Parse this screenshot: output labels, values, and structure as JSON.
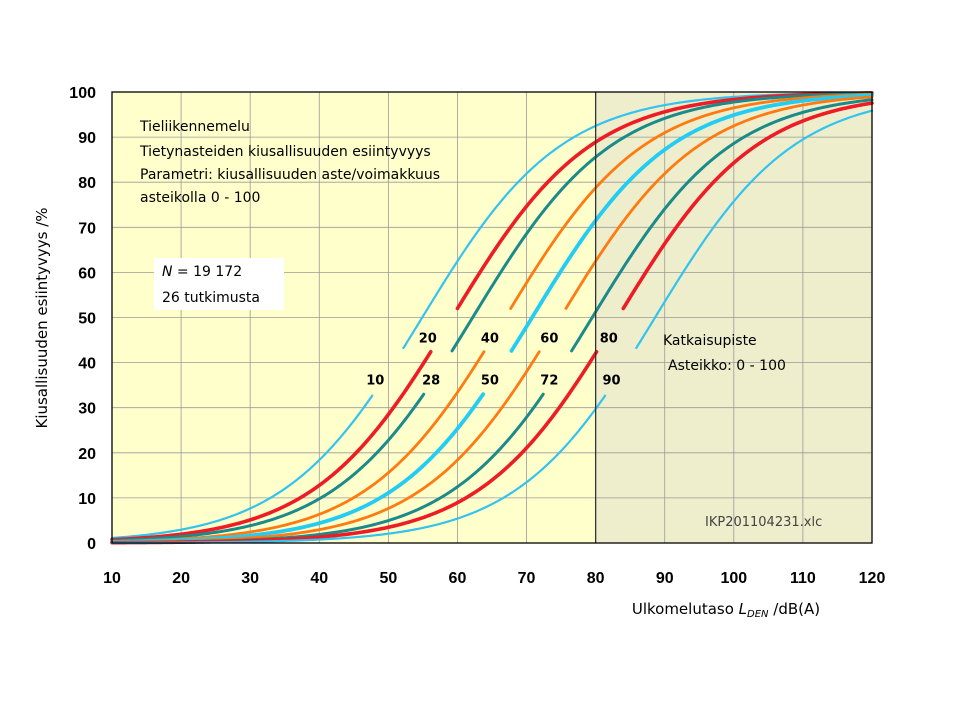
{
  "chart_data": {
    "type": "line",
    "ylabel": "Kiusallisuuden esiintyvyys /%",
    "xlabel_prefix": "Ulkomelutaso ",
    "xlabel_var": "L",
    "xlabel_sub": "DEN",
    "xlabel_suffix": " /dB(A)",
    "xlim": [
      10,
      120
    ],
    "ylim": [
      0,
      100
    ],
    "x_ticks": [
      10,
      20,
      30,
      40,
      50,
      60,
      70,
      80,
      90,
      100,
      110,
      120
    ],
    "y_ticks": [
      0,
      10,
      20,
      30,
      40,
      50,
      60,
      70,
      80,
      90,
      100
    ],
    "grid": true,
    "cutoff_x": 80,
    "colors": {
      "left_bg": "#ffffcc",
      "right_bg": "#eeeecc"
    },
    "info_lines": [
      "Tieliikennemelu",
      "Tietynasteiden kiusallisuuden esiintyvyys",
      "Parametri: kiusallisuuden aste/voimakkuus",
      "asteikolla 0 - 100"
    ],
    "n_italic": "N",
    "n_value": " = 19 172",
    "studies": "26 tutkimusta",
    "cutoff_title": "Katkaisupiste",
    "cutoff_scale": "Asteikko: 0 - 100",
    "file_ref": "IKP201104231.xlc",
    "series": [
      {
        "name": "10",
        "color": "#33c3ee",
        "width": 2.2,
        "x50": 54.9,
        "k": 0.1,
        "label_x": 48.1,
        "label_y": 36.2,
        "gap": 2.2
      },
      {
        "name": "20",
        "color": "#ee1c24",
        "width": 3.6,
        "x50": 59.2,
        "k": 0.1,
        "label_x": 55.7,
        "label_y": 45.6,
        "gap": 2.0
      },
      {
        "name": "28",
        "color": "#1a8a8a",
        "width": 3.0,
        "x50": 62.2,
        "k": 0.1,
        "label_x": 56.2,
        "label_y": 36.2,
        "gap": 2.0
      },
      {
        "name": "40",
        "color": "#ff7a10",
        "width": 2.8,
        "x50": 66.9,
        "k": 0.1,
        "label_x": 64.7,
        "label_y": 45.6,
        "gap": 2.0
      },
      {
        "name": "50",
        "color": "#22ccf2",
        "width": 3.8,
        "x50": 70.8,
        "k": 0.1,
        "label_x": 64.7,
        "label_y": 36.2,
        "gap": 2.0
      },
      {
        "name": "60",
        "color": "#ff7a10",
        "width": 2.8,
        "x50": 74.9,
        "k": 0.1,
        "label_x": 73.3,
        "label_y": 45.6,
        "gap": 2.0
      },
      {
        "name": "72",
        "color": "#1a8a8a",
        "width": 3.0,
        "x50": 79.5,
        "k": 0.1,
        "label_x": 73.3,
        "label_y": 36.2,
        "gap": 2.0
      },
      {
        "name": "80",
        "color": "#ee1c24",
        "width": 3.6,
        "x50": 83.2,
        "k": 0.1,
        "label_x": 81.9,
        "label_y": 45.6,
        "gap": 2.0
      },
      {
        "name": "90",
        "color": "#33c3ee",
        "width": 2.2,
        "x50": 88.6,
        "k": 0.1,
        "label_x": 82.3,
        "label_y": 36.2,
        "gap": 2.2
      }
    ]
  }
}
